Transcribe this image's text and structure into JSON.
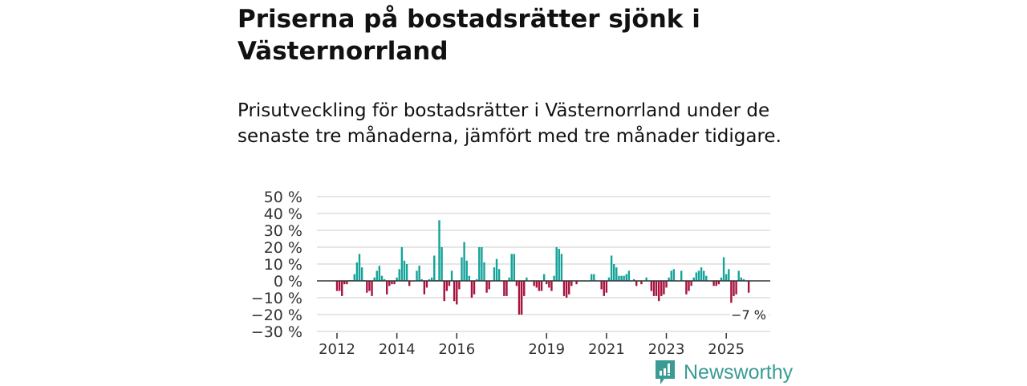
{
  "title": "Priserna på bostadsrätter sjönk i Västernorrland",
  "subtitle": "Prisutveckling för bostadsrätter i Västernorrland under de senaste tre månaderna, jämfört med tre månader tidigare.",
  "brand": "Newsworthy",
  "colors": {
    "positive": "#14a39a",
    "negative": "#a8123e",
    "grid": "#dddddd",
    "zero": "#333333",
    "brand": "#3a9b95"
  },
  "chart_data": {
    "type": "bar",
    "x_start": "2012-01",
    "x_step": "month",
    "ylabel": "",
    "xlabel": "",
    "ylim": [
      -30,
      50
    ],
    "yticks": [
      50,
      40,
      30,
      20,
      10,
      0,
      -10,
      -20,
      -30
    ],
    "ytick_labels": [
      "50 %",
      "40 %",
      "30 %",
      "20 %",
      "10 %",
      "0 %",
      "−10 %",
      "−20 %",
      "−30 %"
    ],
    "xtick_labels": [
      "2012",
      "2014",
      "2016",
      "2019",
      "2021",
      "2023",
      "2025"
    ],
    "last_value_label": "−7 %",
    "grid": true,
    "values": [
      -6,
      -6,
      -9,
      -2,
      -2,
      0.5,
      0.5,
      4,
      11,
      16,
      8,
      0.5,
      -7,
      -6,
      -9,
      2,
      6,
      9,
      3,
      1,
      -8,
      -3,
      -2,
      -2,
      2,
      7,
      20,
      12,
      10,
      -3,
      0,
      0,
      6,
      9,
      1,
      -8,
      -4,
      1,
      2,
      15,
      0.5,
      36,
      20,
      -12,
      -6,
      -3,
      6,
      -12,
      -14,
      -5,
      14,
      23,
      12,
      3,
      -10,
      -8,
      1,
      20,
      20,
      11,
      -7,
      -5,
      0,
      8,
      13,
      7,
      0,
      -9,
      -9,
      2,
      16,
      16,
      -3,
      -20,
      -20,
      -9,
      2,
      0,
      0,
      -3,
      -4,
      -6,
      -6,
      4,
      -2,
      -4,
      -6,
      3,
      20,
      19,
      16,
      -9,
      -10,
      -8,
      -3,
      0,
      -2,
      0,
      0,
      0,
      0,
      0,
      4,
      4,
      0,
      0,
      -5,
      -9,
      -7,
      2,
      15,
      10,
      8,
      3,
      3,
      3,
      4,
      6,
      0,
      1,
      -3,
      0,
      -2,
      0,
      2,
      0,
      -6,
      -9,
      -9,
      -12,
      -9,
      -8,
      -4,
      2,
      6,
      7,
      0,
      0,
      6,
      0,
      -8,
      -6,
      -3,
      2,
      5,
      6,
      8,
      6,
      3,
      0,
      0,
      -3,
      -3,
      -2,
      2,
      14,
      4,
      7,
      -13,
      -9,
      -8,
      6,
      2,
      1,
      0,
      -7
    ]
  }
}
